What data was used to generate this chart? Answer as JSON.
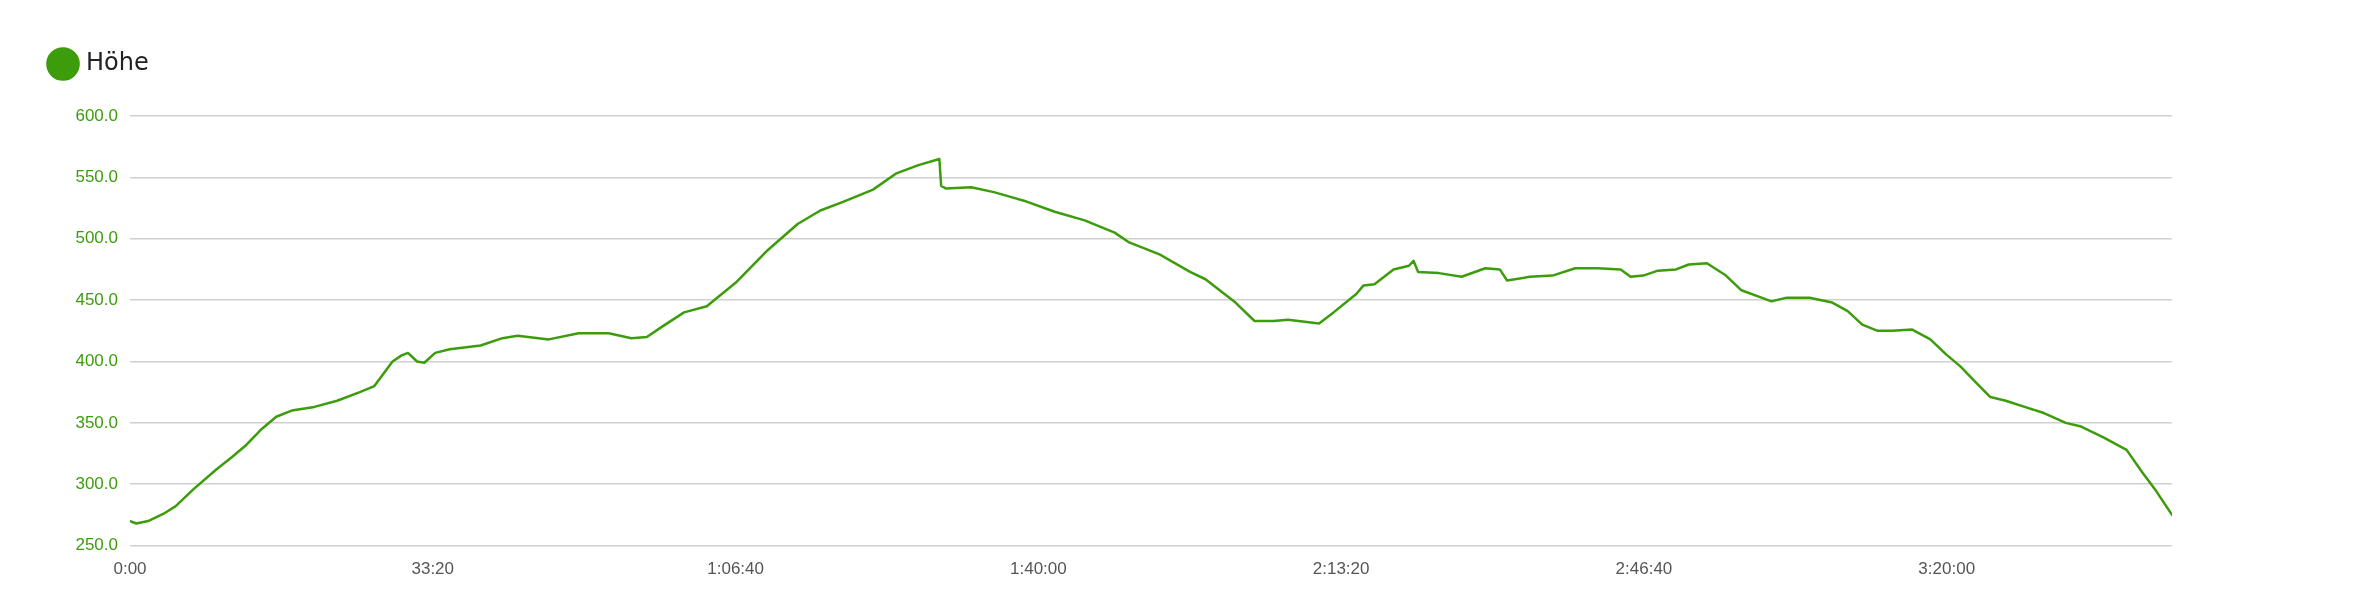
{
  "chart_data": {
    "type": "line",
    "legend": "top left",
    "grid": "y",
    "marker": "none",
    "line_style": "solid",
    "x": [
      0,
      0.7,
      2.0,
      3.7,
      5.0,
      7.0,
      9.5,
      11.2,
      12.8,
      14.5,
      16.1,
      17.8,
      20.3,
      22.8,
      25.3,
      26.9,
      28.9,
      29.9,
      30.6,
      31.6,
      32.4,
      33.6,
      35.2,
      38.6,
      41.0,
      42.7,
      46.1,
      49.4,
      52.7,
      55.2,
      56.9,
      58.5,
      61.0,
      63.5,
      66.8,
      70.1,
      73.5,
      76.0,
      78.5,
      81.8,
      84.3,
      86.8,
      89.1,
      89.3,
      89.8,
      92.6,
      95.1,
      98.4,
      101.8,
      105.1,
      108.4,
      110.0,
      113.4,
      116.7,
      118.4,
      121.7,
      123.8,
      125.9,
      127.5,
      130.9,
      132.5,
      135.0,
      135.8,
      137.0,
      139.1,
      140.8,
      141.3,
      141.8,
      144.1,
      146.6,
      149.2,
      150.8,
      151.6,
      154.1,
      156.6,
      159.1,
      161.6,
      164.1,
      165.2,
      166.6,
      168.2,
      170.2,
      171.6,
      173.6,
      175.7,
      177.4,
      179.6,
      180.7,
      182.4,
      184.9,
      187.4,
      189.1,
      190.7,
      192.4,
      194.0,
      196.2,
      198.2,
      199.9,
      201.5,
      203.2,
      204.8,
      206.5,
      209.0,
      210.7,
      213.1,
      214.8,
      217.3,
      219.8,
      221.5,
      223.1,
      224.8
    ],
    "series": [
      {
        "name": "Höhe",
        "color": "#3c9c0c",
        "values": [
          270,
          268,
          270,
          276,
          282,
          296,
          312,
          322,
          332,
          345,
          355,
          360,
          363,
          368,
          375,
          380,
          400,
          405,
          407,
          400,
          399,
          407,
          410,
          413,
          419,
          421,
          418,
          423,
          423,
          419,
          420,
          428,
          440,
          445,
          465,
          490,
          512,
          523,
          530,
          540,
          553,
          560,
          565,
          543,
          541,
          542,
          538,
          531,
          522,
          515,
          505,
          497,
          487,
          473,
          467,
          448,
          433,
          433,
          434,
          431,
          440,
          455,
          462,
          463,
          475,
          478,
          482,
          473,
          472,
          469,
          476,
          475,
          466,
          469,
          470,
          476,
          476,
          475,
          469,
          470,
          474,
          475,
          479,
          480,
          470,
          458,
          452,
          449,
          452,
          452,
          448,
          441,
          430,
          425,
          425,
          426,
          418,
          406,
          396,
          383,
          371,
          368,
          362,
          358,
          350,
          347,
          338,
          328,
          310,
          294,
          275
        ]
      }
    ],
    "xlim": [
      0,
      224.8
    ],
    "xticks": [
      {
        "value": 0,
        "label": "0:00"
      },
      {
        "value": 33.33,
        "label": "33:20"
      },
      {
        "value": 66.67,
        "label": "1:06:40"
      },
      {
        "value": 100,
        "label": "1:40:00"
      },
      {
        "value": 133.33,
        "label": "2:13:20"
      },
      {
        "value": 166.67,
        "label": "2:46:40"
      },
      {
        "value": 200,
        "label": "3:20:00"
      }
    ],
    "ylim": [
      250,
      600
    ],
    "yticks": [
      {
        "value": 250,
        "label": "250.0"
      },
      {
        "value": 300,
        "label": "300.0"
      },
      {
        "value": 350,
        "label": "350.0"
      },
      {
        "value": 400,
        "label": "400.0"
      },
      {
        "value": 450,
        "label": "450.0"
      },
      {
        "value": 500,
        "label": "500.0"
      },
      {
        "value": 550,
        "label": "550.0"
      },
      {
        "value": 600,
        "label": "600.0"
      }
    ]
  }
}
